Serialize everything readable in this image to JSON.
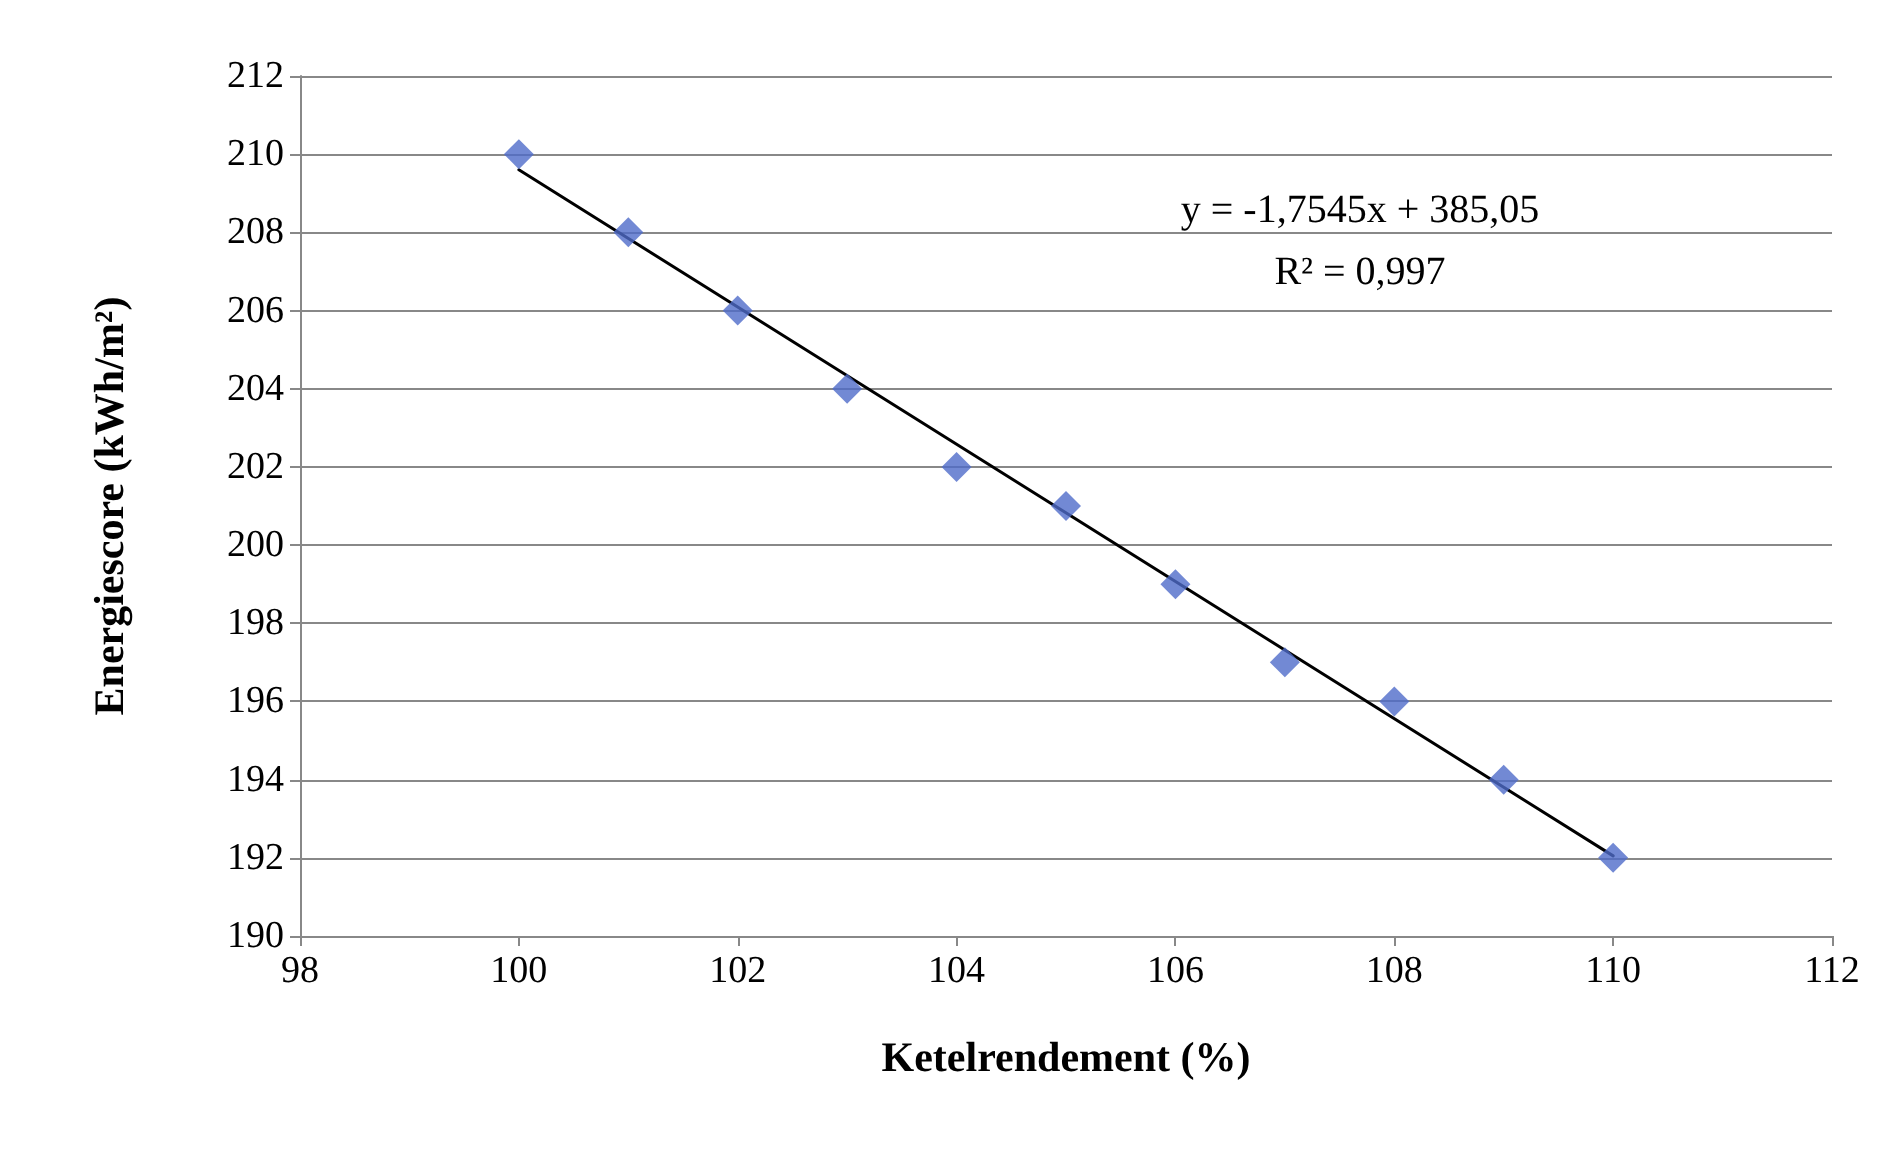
{
  "chart_data": {
    "type": "scatter",
    "xlabel": "Ketelrendement (%)",
    "ylabel": "Energiescore (kWh/m²)",
    "annotations": [
      "y = -1,7545x + 385,05",
      "R² = 0,997"
    ],
    "series": [
      {
        "color": "#4f6bc9",
        "marker": "diamond",
        "x": [
          100,
          101,
          102,
          103,
          104,
          105,
          106,
          107,
          108,
          109,
          110
        ],
        "values": [
          210,
          208,
          206,
          204,
          202,
          201,
          199,
          197,
          196,
          194,
          192
        ]
      },
      {
        "type": "line",
        "color": "#000000",
        "marker": "none",
        "line_style": "solid",
        "x": [
          100,
          110
        ],
        "values": [
          209.6,
          192.05
        ]
      }
    ],
    "xlim": [
      98,
      112
    ],
    "xticks": [
      98,
      100,
      102,
      104,
      106,
      108,
      110,
      112
    ],
    "ylim": [
      190,
      212
    ],
    "yticks": [
      190,
      192,
      194,
      196,
      198,
      200,
      202,
      204,
      206,
      208,
      210,
      212
    ],
    "grid": "y"
  }
}
